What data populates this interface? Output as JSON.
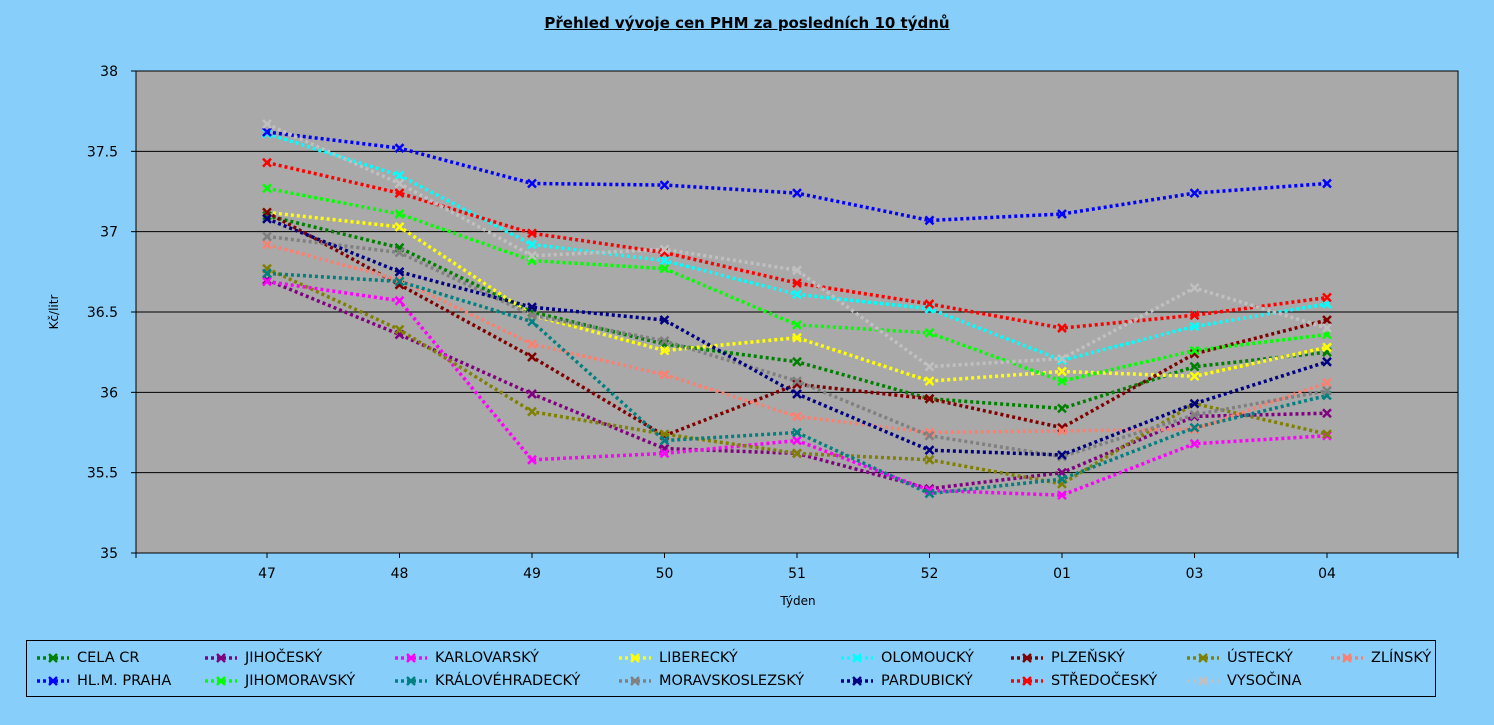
{
  "chart_data": {
    "type": "line",
    "title": "Přehled vývoje cen PHM  za posledních 10 týdnů",
    "xlabel": "Týden",
    "ylabel": "Kč/litr",
    "ylim": [
      35,
      38
    ],
    "yticks": [
      "35",
      "35.5",
      "36",
      "36.5",
      "37",
      "37.5",
      "38"
    ],
    "categories": [
      "47",
      "48",
      "49",
      "50",
      "51",
      "52",
      "01",
      "03",
      "04"
    ],
    "grid": true,
    "legend_position": "bottom",
    "series": [
      {
        "name": "CELA CR",
        "color": "#008000",
        "values": [
          37.1,
          36.9,
          36.5,
          36.3,
          36.19,
          35.96,
          35.9,
          36.16,
          36.25
        ]
      },
      {
        "name": "JIHOČESKÝ",
        "color": "#800080",
        "values": [
          36.7,
          36.36,
          35.99,
          35.65,
          35.62,
          35.4,
          35.5,
          35.85,
          35.87
        ]
      },
      {
        "name": "KARLOVARSKÝ",
        "color": "#ff00ff",
        "values": [
          36.69,
          36.57,
          35.58,
          35.62,
          35.7,
          35.39,
          35.36,
          35.68,
          35.73
        ]
      },
      {
        "name": "LIBERECKÝ",
        "color": "#ffff00",
        "values": [
          37.12,
          37.03,
          36.48,
          36.26,
          36.34,
          36.07,
          36.13,
          36.1,
          36.28
        ]
      },
      {
        "name": "OLOMOUCKÝ",
        "color": "#00ffff",
        "values": [
          37.61,
          37.35,
          36.92,
          36.82,
          36.61,
          36.52,
          36.2,
          36.41,
          36.55
        ]
      },
      {
        "name": "PLZEŇSKÝ",
        "color": "#800000",
        "values": [
          37.12,
          36.67,
          36.22,
          35.73,
          36.05,
          35.96,
          35.78,
          36.24,
          36.45
        ]
      },
      {
        "name": "ÚSTECKÝ",
        "color": "#808000",
        "values": [
          36.77,
          36.39,
          35.88,
          35.74,
          35.62,
          35.58,
          35.43,
          35.93,
          35.74
        ]
      },
      {
        "name": "ZLÍNSKÝ",
        "color": "#fa8072",
        "values": [
          36.92,
          36.7,
          36.3,
          36.11,
          35.85,
          35.75,
          35.76,
          35.77,
          36.06
        ]
      },
      {
        "name": "HL.M. PRAHA",
        "color": "#0000ff",
        "values": [
          37.62,
          37.52,
          37.3,
          37.29,
          37.24,
          37.07,
          37.11,
          37.24,
          37.3
        ]
      },
      {
        "name": "JIHOMORAVSKÝ",
        "color": "#00ff00",
        "values": [
          37.27,
          37.11,
          36.82,
          36.77,
          36.42,
          36.37,
          36.07,
          36.26,
          36.36
        ]
      },
      {
        "name": "KRÁLOVÉHRADECKÝ",
        "color": "#008080",
        "values": [
          36.74,
          36.69,
          36.44,
          35.7,
          35.75,
          35.37,
          35.46,
          35.78,
          35.98
        ]
      },
      {
        "name": "MORAVSKOSLEZSKÝ",
        "color": "#808080",
        "values": [
          36.97,
          36.87,
          36.48,
          36.32,
          36.07,
          35.73,
          35.6,
          35.86,
          36.01
        ]
      },
      {
        "name": "PARDUBICKÝ",
        "color": "#000080",
        "values": [
          37.08,
          36.75,
          36.53,
          36.45,
          35.99,
          35.64,
          35.61,
          35.93,
          36.19
        ]
      },
      {
        "name": "STŘEDOČESKÝ",
        "color": "#ff0000",
        "values": [
          37.43,
          37.24,
          36.99,
          36.87,
          36.68,
          36.55,
          36.4,
          36.48,
          36.59
        ]
      },
      {
        "name": "VYSOČINA",
        "color": "#c0c0c0",
        "values": [
          37.67,
          37.3,
          36.85,
          36.89,
          36.76,
          36.16,
          36.21,
          36.65,
          36.4
        ]
      }
    ]
  }
}
